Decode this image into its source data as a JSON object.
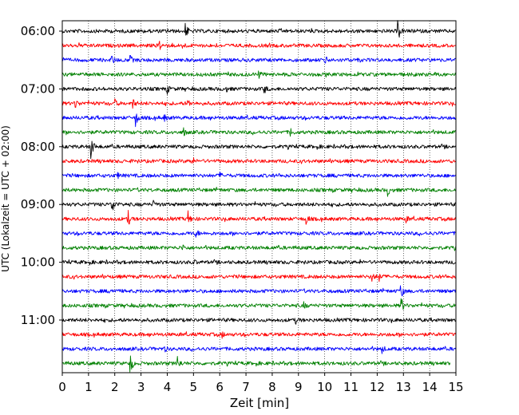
{
  "chart_data": {
    "type": "line",
    "subtype": "helicorder",
    "xlabel": "Zeit  [min]",
    "ylabel": "UTC (Lokalzeit = UTC + 02:00)",
    "xlim": [
      0,
      15
    ],
    "x_ticks": [
      "0",
      "1",
      "2",
      "3",
      "4",
      "5",
      "6",
      "7",
      "8",
      "9",
      "10",
      "11",
      "12",
      "13",
      "14",
      "15"
    ],
    "y_ticks": [
      "06:00",
      "07:00",
      "08:00",
      "09:00",
      "10:00",
      "11:00"
    ],
    "grid": "vertical-dotted",
    "trace_colors": [
      "#000000",
      "#ff0000",
      "#0000ff",
      "#008000"
    ],
    "traces": [
      {
        "start": "06:00",
        "color": "#000000",
        "events": [
          [
            4.7,
            1.0
          ],
          [
            12.8,
            1.2
          ]
        ]
      },
      {
        "start": "06:15",
        "color": "#ff0000",
        "events": [
          [
            3.7,
            0.6
          ],
          [
            4.6,
            0.3
          ]
        ]
      },
      {
        "start": "06:30",
        "color": "#0000ff",
        "events": [
          [
            1.9,
            0.5
          ],
          [
            2.6,
            0.4
          ],
          [
            10.0,
            0.5
          ]
        ]
      },
      {
        "start": "06:45",
        "color": "#008000",
        "events": [
          [
            7.5,
            0.3
          ]
        ]
      },
      {
        "start": "07:00",
        "color": "#000000",
        "events": [
          [
            4.0,
            0.5
          ],
          [
            6.2,
            0.5
          ],
          [
            7.7,
            0.5
          ]
        ]
      },
      {
        "start": "07:15",
        "color": "#ff0000",
        "events": [
          [
            0.5,
            0.6
          ],
          [
            2.0,
            0.4
          ],
          [
            2.7,
            0.5
          ],
          [
            4.8,
            0.4
          ]
        ]
      },
      {
        "start": "07:30",
        "color": "#0000ff",
        "events": [
          [
            2.8,
            1.0
          ],
          [
            3.9,
            0.3
          ]
        ]
      },
      {
        "start": "07:45",
        "color": "#008000",
        "events": [
          [
            4.6,
            0.6
          ],
          [
            8.7,
            0.5
          ]
        ]
      },
      {
        "start": "08:00",
        "color": "#000000",
        "events": [
          [
            1.1,
            1.6
          ]
        ]
      },
      {
        "start": "08:15",
        "color": "#ff0000",
        "events": [
          [
            4.9,
            0.4
          ]
        ]
      },
      {
        "start": "08:30",
        "color": "#0000ff",
        "events": [
          [
            2.1,
            0.3
          ],
          [
            6.0,
            0.3
          ]
        ]
      },
      {
        "start": "08:45",
        "color": "#008000",
        "events": [
          [
            12.4,
            0.6
          ]
        ]
      },
      {
        "start": "09:00",
        "color": "#000000",
        "events": [
          [
            1.9,
            1.3
          ],
          [
            3.5,
            0.4
          ]
        ]
      },
      {
        "start": "09:15",
        "color": "#ff0000",
        "events": [
          [
            2.5,
            1.0
          ],
          [
            4.8,
            0.8
          ],
          [
            9.3,
            0.6
          ],
          [
            13.1,
            0.3
          ]
        ]
      },
      {
        "start": "09:30",
        "color": "#0000ff",
        "events": [
          [
            5.1,
            0.5
          ]
        ]
      },
      {
        "start": "09:45",
        "color": "#008000",
        "events": [
          [
            4.6,
            0.3
          ]
        ]
      },
      {
        "start": "10:00",
        "color": "#000000",
        "events": [
          [
            5.0,
            0.3
          ]
        ]
      },
      {
        "start": "10:15",
        "color": "#ff0000",
        "events": [
          [
            11.8,
            0.8
          ],
          [
            12.1,
            0.4
          ]
        ]
      },
      {
        "start": "10:30",
        "color": "#0000ff",
        "events": [
          [
            12.9,
            0.9
          ],
          [
            1.9,
            0.3
          ]
        ]
      },
      {
        "start": "10:45",
        "color": "#008000",
        "events": [
          [
            12.9,
            1.3
          ],
          [
            9.2,
            0.3
          ]
        ]
      },
      {
        "start": "11:00",
        "color": "#000000",
        "events": [
          [
            8.9,
            0.3
          ]
        ]
      },
      {
        "start": "11:15",
        "color": "#ff0000",
        "events": [
          [
            6.1,
            0.3
          ]
        ]
      },
      {
        "start": "11:30",
        "color": "#0000ff",
        "events": [
          [
            12.2,
            0.4
          ],
          [
            3.9,
            0.3
          ]
        ]
      },
      {
        "start": "11:45",
        "color": "#008000",
        "events": [
          [
            2.6,
            1.2
          ],
          [
            4.4,
            1.0
          ]
        ]
      }
    ],
    "last_trace_end_min": 14.8
  }
}
